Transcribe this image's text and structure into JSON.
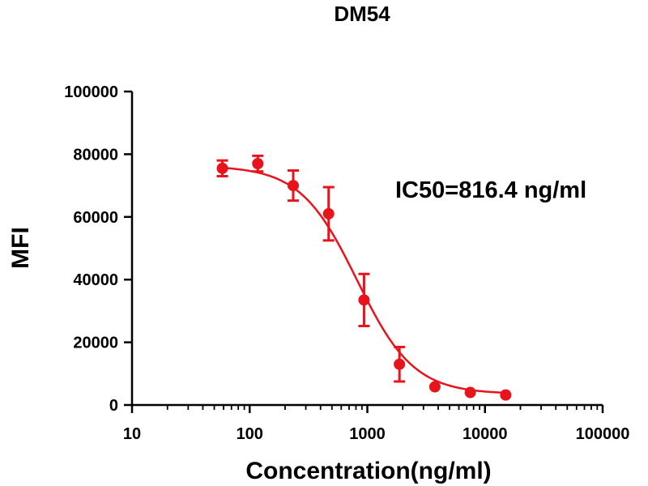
{
  "chart_data": {
    "type": "scatter",
    "title": "DM54",
    "xlabel": "Concentration(ng/ml)",
    "ylabel": "MFI",
    "x_scale": "log",
    "xlim": [
      10,
      100000
    ],
    "ylim": [
      0,
      100000
    ],
    "x_ticks": [
      "10",
      "100",
      "1000",
      "10000",
      "100000"
    ],
    "y_ticks": [
      "0",
      "20000",
      "40000",
      "60000",
      "80000",
      "100000"
    ],
    "annotation": "IC50=816.4 ng/ml",
    "grid": false,
    "series": [
      {
        "color": "#e8141b",
        "points": [
          {
            "x": 58.6,
            "y": 75500,
            "err": 2500
          },
          {
            "x": 117.2,
            "y": 77000,
            "err": 2500
          },
          {
            "x": 234.4,
            "y": 70000,
            "err": 4800
          },
          {
            "x": 468.8,
            "y": 61000,
            "err": 8500
          },
          {
            "x": 937.5,
            "y": 33500,
            "err": 8300
          },
          {
            "x": 1875,
            "y": 13000,
            "err": 5500
          },
          {
            "x": 3750,
            "y": 5800,
            "err": 0
          },
          {
            "x": 7500,
            "y": 4000,
            "err": 0
          },
          {
            "x": 15000,
            "y": 3200,
            "err": 0
          }
        ],
        "fit": {
          "model": "4PL",
          "top": 76300,
          "bottom": 3500,
          "ic50": 816.4,
          "hill": 1.8
        }
      }
    ]
  }
}
